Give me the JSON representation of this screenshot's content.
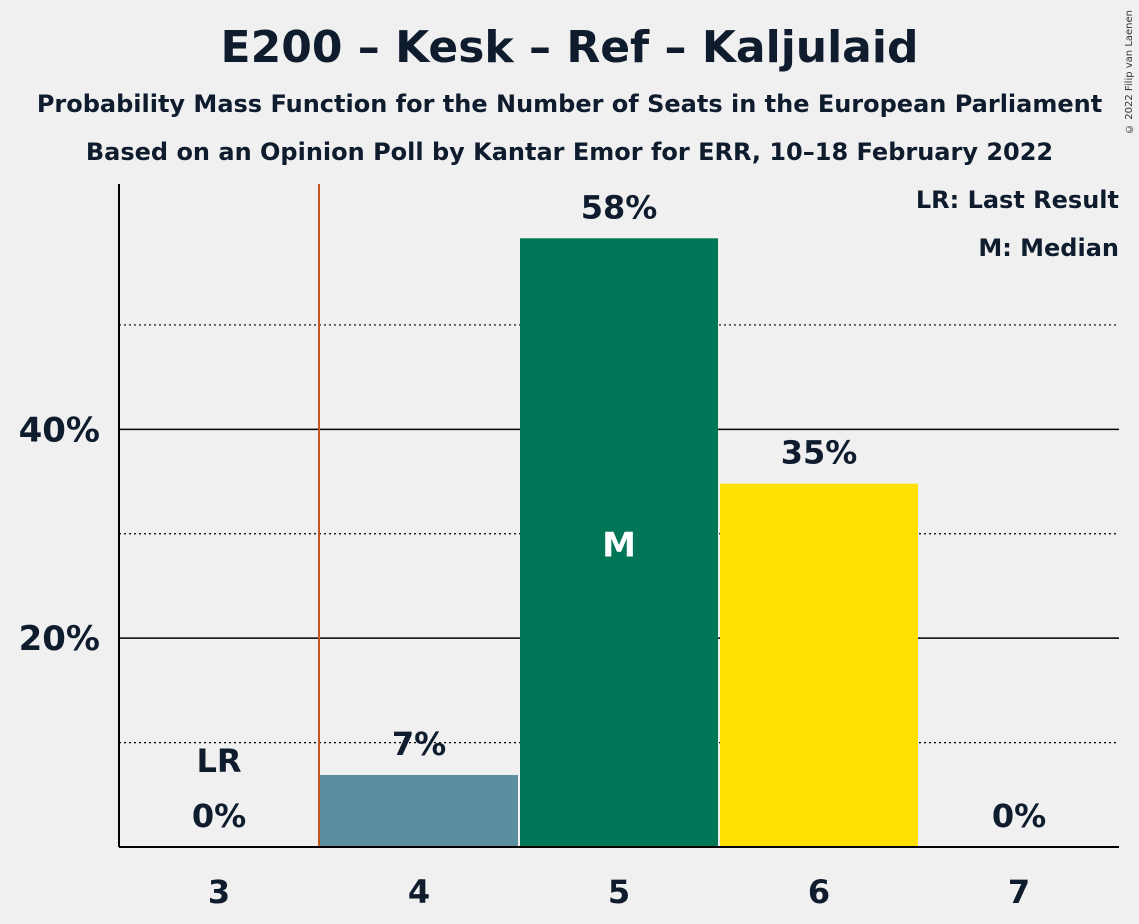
{
  "chart_data": {
    "type": "bar",
    "title": "E200 – Kesk – Ref – Kaljulaid",
    "subtitle": "Probability Mass Function for the Number of Seats in the European Parliament",
    "source": "Based on an Opinion Poll by Kantar Emor for ERR, 10–18 February 2022",
    "copyright": "© 2022 Filip van Laenen",
    "categories": [
      "3",
      "4",
      "5",
      "6",
      "7"
    ],
    "values": [
      0,
      6.9,
      58.3,
      34.8,
      0
    ],
    "value_labels": [
      "0%",
      "7%",
      "58%",
      "35%",
      "0%"
    ],
    "bar_colors": [
      "#5b8fa0",
      "#5b8fa0",
      "#007657",
      "#ffe000",
      "#5b8fa0"
    ],
    "ylim": [
      0,
      63.5
    ],
    "yticks": [
      {
        "value": 20,
        "label": "20%"
      },
      {
        "value": 40,
        "label": "40%"
      }
    ],
    "minor_gridlines": [
      10,
      30,
      50
    ],
    "last_result": {
      "seat": "3",
      "label": "LR"
    },
    "median": {
      "seat": "5",
      "label": "M"
    },
    "last_result_line_color": "#c8551b",
    "legend": [
      "LR: Last Result",
      "M: Median"
    ]
  }
}
